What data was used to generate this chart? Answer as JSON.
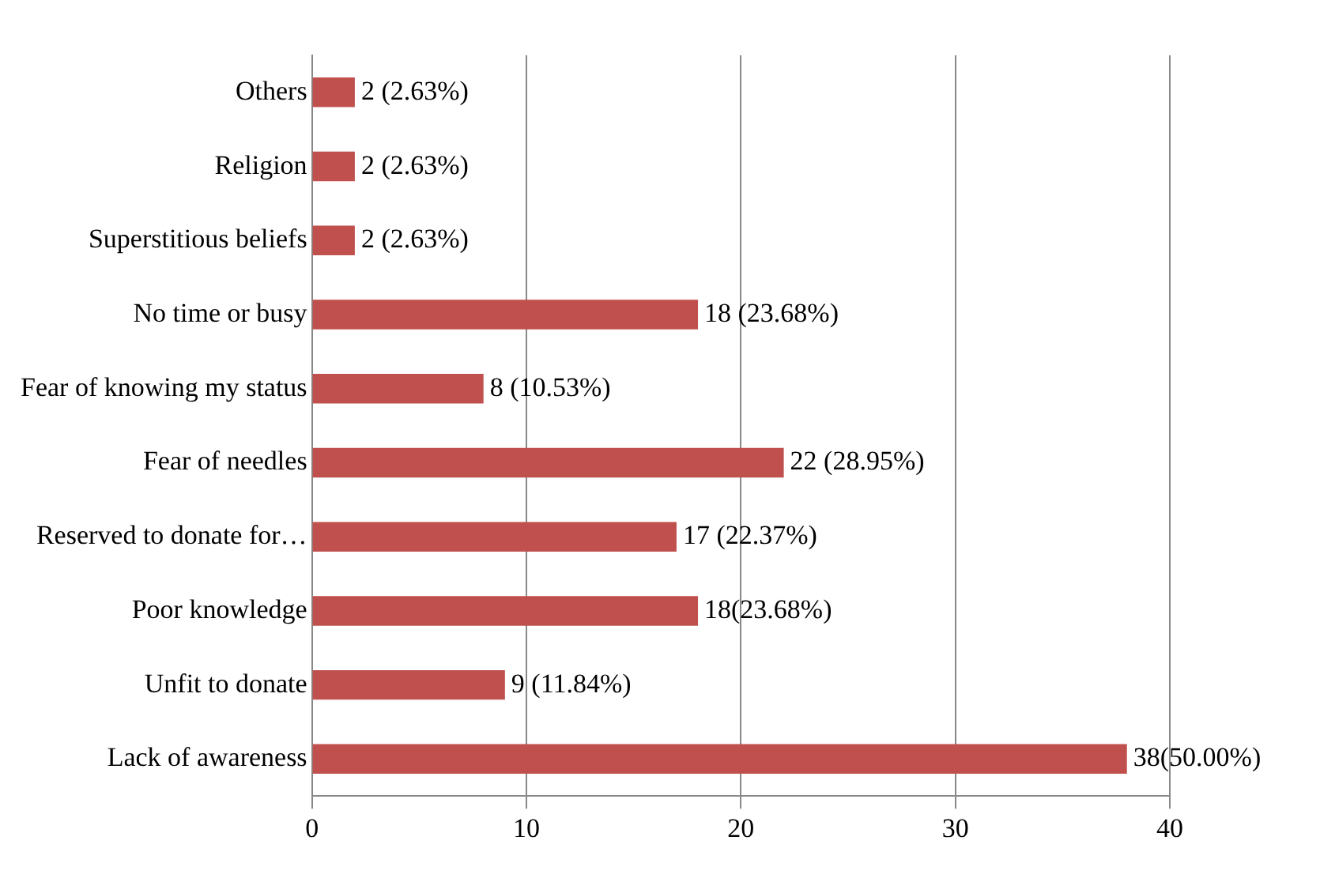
{
  "chart_data": {
    "type": "bar",
    "orientation": "horizontal",
    "categories": [
      "Others",
      "Religion",
      "Superstitious beliefs",
      "No time or busy",
      "Fear of knowing my status",
      "Fear of needles",
      "Reserved to donate for…",
      "Poor knowledge",
      "Unfit to donate",
      "Lack of awareness"
    ],
    "values": [
      2,
      2,
      2,
      18,
      8,
      22,
      17,
      18,
      9,
      38
    ],
    "value_labels": [
      "2 (2.63%)",
      "2 (2.63%)",
      "2 (2.63%)",
      "18 (23.68%)",
      "8 (10.53%)",
      "22 (28.95%)",
      "17 (22.37%)",
      "18(23.68%)",
      "9 (11.84%)",
      "38(50.00%)"
    ],
    "color": "#c0504d",
    "xlim": [
      0,
      40
    ],
    "xticks": [
      0,
      10,
      20,
      30,
      40
    ],
    "grid": "x",
    "legend": false
  }
}
